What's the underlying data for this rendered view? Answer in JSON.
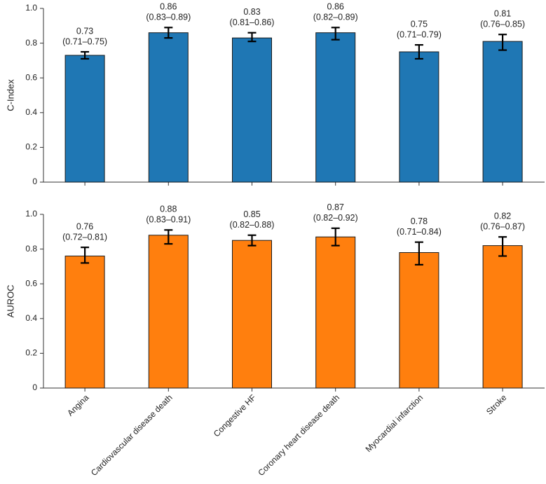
{
  "chart_data": [
    {
      "type": "bar",
      "ylabel": "C-Index",
      "color": "#1f77b4",
      "values": [
        0.73,
        0.86,
        0.83,
        0.86,
        0.75,
        0.81
      ],
      "lower": [
        0.71,
        0.83,
        0.81,
        0.82,
        0.71,
        0.76
      ],
      "upper": [
        0.75,
        0.89,
        0.86,
        0.89,
        0.79,
        0.85
      ],
      "ci_labels": [
        "(0.71–0.75)",
        "(0.83–0.89)",
        "(0.81–0.86)",
        "(0.82–0.89)",
        "(0.71–0.79)",
        "(0.76–0.85)"
      ],
      "ylim": [
        0,
        1
      ],
      "yticks": [
        0,
        0.2,
        0.4,
        0.6,
        0.8,
        {
          "value": 1,
          "label": "1.0"
        }
      ]
    },
    {
      "type": "bar",
      "ylabel": "AUROC",
      "color": "#ff7f0e",
      "categories": [
        "Angina",
        "Cardiovascular disease death",
        "Congestive HF",
        "Coronary heart disease death",
        "Myocardial infarction",
        "Stroke"
      ],
      "values": [
        0.76,
        0.88,
        0.85,
        0.87,
        0.78,
        0.82
      ],
      "lower": [
        0.72,
        0.83,
        0.82,
        0.82,
        0.71,
        0.76
      ],
      "upper": [
        0.81,
        0.91,
        0.88,
        0.92,
        0.84,
        0.87
      ],
      "ci_labels": [
        "(0.72–0.81)",
        "(0.83–0.91)",
        "(0.82–0.88)",
        "(0.82–0.92)",
        "(0.71–0.84)",
        "(0.76–0.87)"
      ],
      "ylim": [
        0,
        1
      ],
      "yticks": [
        0,
        0.2,
        0.4,
        0.6,
        0.8,
        {
          "value": 1,
          "label": "1.0"
        }
      ]
    }
  ]
}
